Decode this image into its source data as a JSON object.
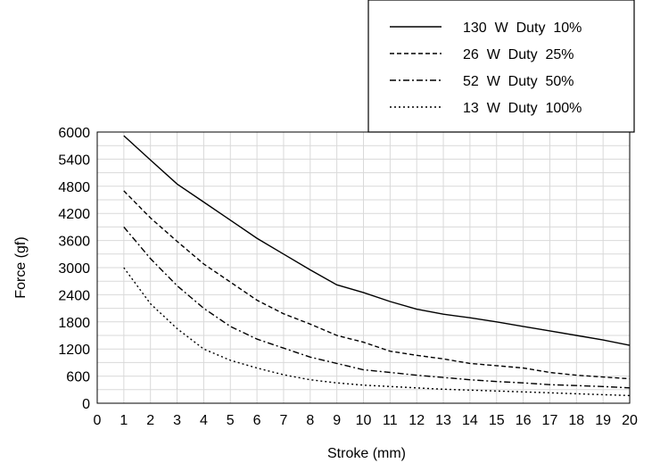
{
  "chart_data": {
    "type": "line",
    "title": "",
    "xlabel": "Stroke (mm)",
    "ylabel": "Force (gf)",
    "xlim": [
      0,
      20
    ],
    "ylim": [
      0,
      6000
    ],
    "x_ticks": [
      "0",
      "1",
      "2",
      "3",
      "4",
      "5",
      "6",
      "7",
      "8",
      "9",
      "10",
      "11",
      "12",
      "13",
      "14",
      "15",
      "16",
      "17",
      "18",
      "19",
      "20"
    ],
    "y_ticks": [
      "0",
      "600",
      "1200",
      "1800",
      "2400",
      "3000",
      "3600",
      "4200",
      "4800",
      "5400",
      "6000"
    ],
    "grid": true,
    "legend_position": "top-right",
    "series": [
      {
        "name": "130  W  Duty  10%",
        "line_style": "solid",
        "x": [
          1,
          2,
          3,
          4,
          5,
          6,
          7,
          8,
          9,
          10,
          11,
          12,
          13,
          14,
          15,
          16,
          17,
          18,
          19,
          20
        ],
        "values": [
          5920,
          5380,
          4850,
          4450,
          4050,
          3650,
          3300,
          2950,
          2620,
          2450,
          2250,
          2080,
          1970,
          1890,
          1800,
          1700,
          1600,
          1500,
          1400,
          1280
        ]
      },
      {
        "name": "26  W  Duty  25%",
        "line_style": "dashed",
        "x": [
          1,
          2,
          3,
          4,
          5,
          6,
          7,
          8,
          9,
          10,
          11,
          12,
          13,
          14,
          15,
          16,
          17,
          18,
          19,
          20
        ],
        "values": [
          4700,
          4100,
          3580,
          3080,
          2680,
          2280,
          1980,
          1750,
          1500,
          1350,
          1150,
          1060,
          980,
          880,
          830,
          780,
          680,
          620,
          580,
          540
        ]
      },
      {
        "name": "52  W  Duty  50%",
        "line_style": "dash-dot",
        "x": [
          1,
          2,
          3,
          4,
          5,
          6,
          7,
          8,
          9,
          10,
          11,
          12,
          13,
          14,
          15,
          16,
          17,
          18,
          19,
          20
        ],
        "values": [
          3900,
          3200,
          2600,
          2100,
          1700,
          1420,
          1220,
          1020,
          880,
          740,
          680,
          620,
          570,
          520,
          480,
          450,
          410,
          390,
          370,
          340
        ]
      },
      {
        "name": "13  W  Duty  100%",
        "line_style": "dotted",
        "x": [
          1,
          2,
          3,
          4,
          5,
          6,
          7,
          8,
          9,
          10,
          11,
          12,
          13,
          14,
          15,
          16,
          17,
          18,
          19,
          20
        ],
        "values": [
          3000,
          2200,
          1650,
          1200,
          950,
          780,
          630,
          520,
          450,
          400,
          370,
          340,
          310,
          290,
          270,
          250,
          230,
          210,
          190,
          170
        ]
      }
    ]
  }
}
